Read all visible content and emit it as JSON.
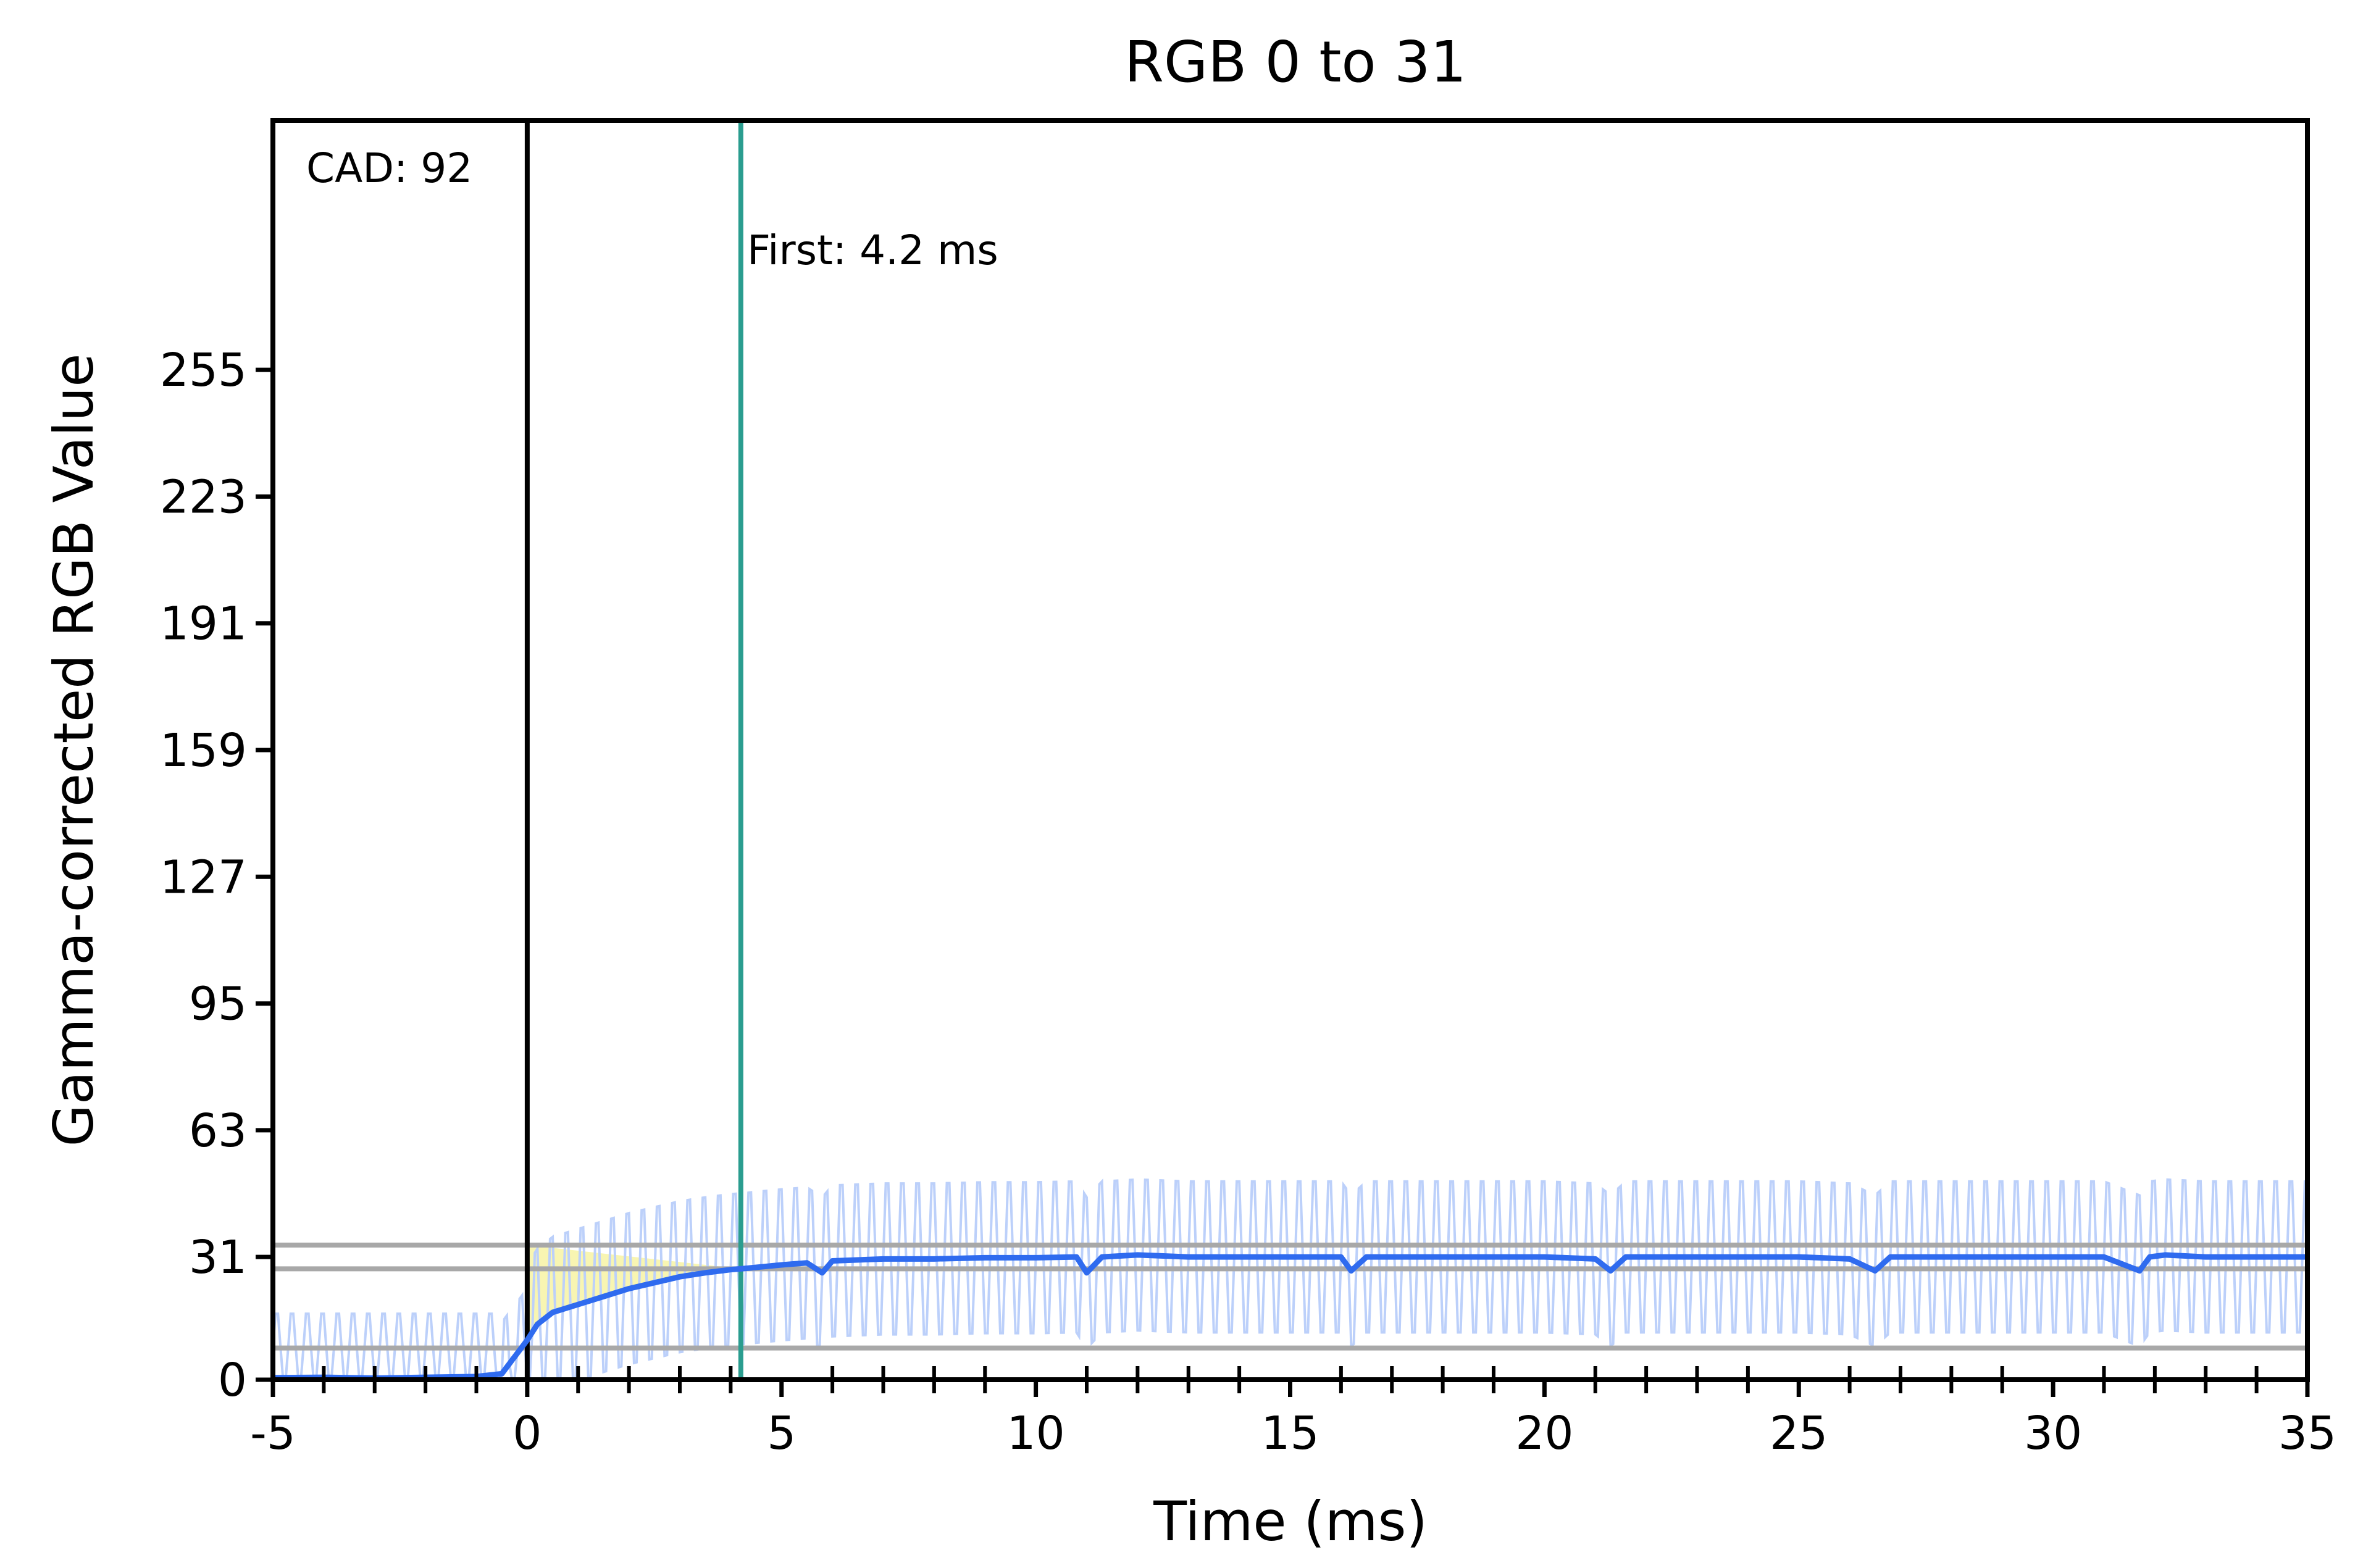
{
  "chart_data": {
    "type": "line",
    "title": "RGB 0 to 31",
    "xlabel": "Time (ms)",
    "ylabel": "Gamma-corrected RGB Value",
    "xlim": [
      -5,
      35
    ],
    "ylim": [
      0,
      318
    ],
    "x_ticks": [
      -5,
      0,
      5,
      10,
      15,
      20,
      25,
      30,
      35
    ],
    "y_ticks": [
      0,
      31,
      63,
      95,
      127,
      159,
      191,
      223,
      255
    ],
    "grid": false,
    "legend": "none",
    "reference_lines": {
      "horizontal": [
        8,
        28,
        34
      ],
      "start_x": 0,
      "first_x": 4.2
    },
    "annotations": {
      "cad": "CAD: 92",
      "first": "First: 4.2 ms"
    },
    "colors": {
      "smoothed": "#2f6bef",
      "raw": "#bcd0fa",
      "first_line": "#2a9d8f",
      "reference": "#a8a8a8",
      "rise_fill": "#f7f3a4",
      "frame": "#000000"
    },
    "series": [
      {
        "values_x": [
          -5,
          -4,
          -3,
          -2,
          -1,
          -0.5,
          0,
          0.2,
          0.5,
          1,
          1.5,
          2,
          2.5,
          3,
          3.5,
          4,
          4.2,
          4.6,
          5,
          5.5,
          5.8,
          6,
          7,
          8,
          9,
          10,
          10.8,
          11,
          11.3,
          12,
          13,
          14,
          15,
          16,
          16.2,
          16.5,
          17,
          18,
          19,
          20,
          21,
          21.3,
          21.6,
          22,
          23,
          24,
          25,
          26,
          26.5,
          26.8,
          27,
          28,
          29,
          30,
          31,
          31.7,
          31.9,
          32.2,
          33,
          34,
          35
        ],
        "values_y": [
          0.5,
          0.6,
          0.4,
          0.6,
          0.8,
          1.5,
          10,
          14,
          17,
          19,
          21,
          23,
          24.5,
          26,
          27,
          27.8,
          28,
          28.5,
          29,
          29.5,
          27,
          30,
          30.5,
          30.5,
          30.8,
          30.8,
          31,
          27,
          31,
          31.5,
          31,
          31,
          31,
          31,
          27.5,
          31,
          31,
          31,
          31,
          31,
          30.5,
          27.5,
          31,
          31,
          31,
          31,
          31,
          30.5,
          27.5,
          31,
          31,
          31,
          31,
          31,
          31,
          27.5,
          31,
          31.5,
          31,
          31,
          31
        ]
      }
    ]
  }
}
